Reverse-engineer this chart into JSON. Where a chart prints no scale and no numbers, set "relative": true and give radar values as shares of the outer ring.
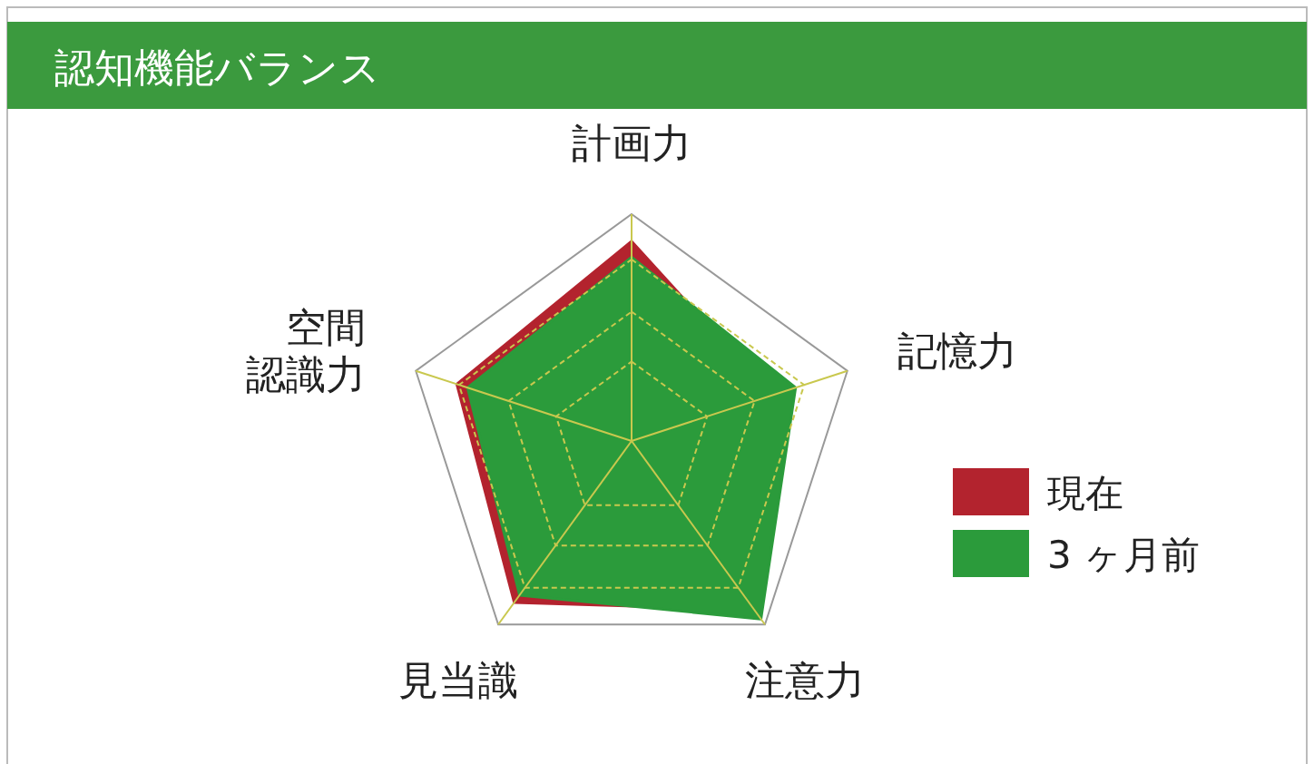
{
  "chart_data": {
    "type": "radar",
    "title": "認知機能バランス",
    "relative": true,
    "categories": [
      "計画力",
      "記憶力",
      "注意力",
      "見当識",
      "空間認識力"
    ],
    "series": [
      {
        "name": "現在",
        "color": "#b3232e",
        "values": [
          0.88,
          0.65,
          0.92,
          0.88,
          0.81
        ]
      },
      {
        "name": "3 ヶ月前",
        "color": "#2b9b3b",
        "values": [
          0.81,
          0.76,
          0.97,
          0.84,
          0.76
        ]
      }
    ],
    "legend": "right"
  }
}
